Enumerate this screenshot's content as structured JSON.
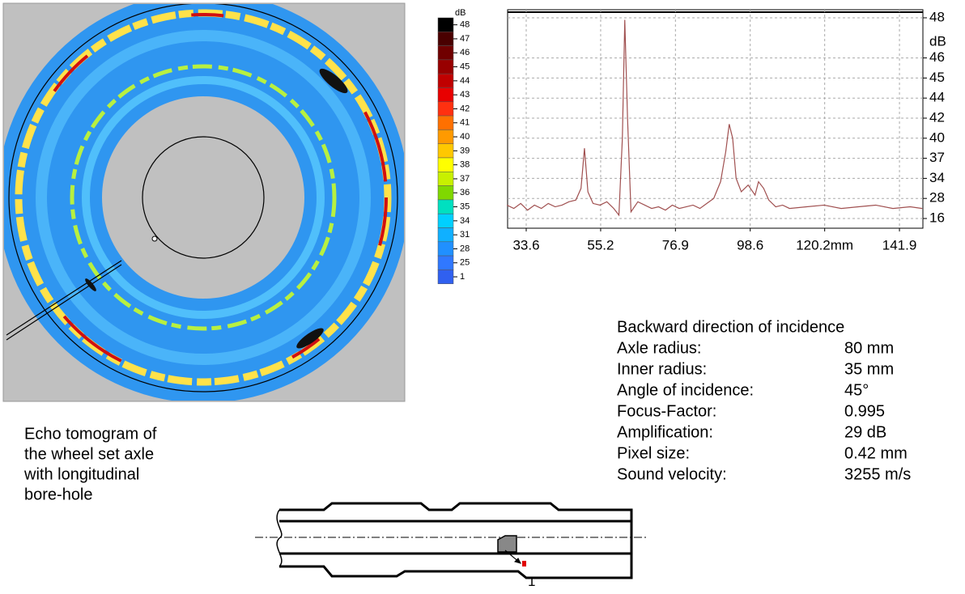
{
  "chart_data": {
    "type": "line",
    "x": [
      28,
      30,
      32,
      34,
      36,
      38,
      40,
      42,
      44,
      46,
      48,
      49.5,
      50.5,
      51.5,
      53,
      55,
      57,
      59,
      60.5,
      61.5,
      62.2,
      63,
      64,
      66,
      68,
      70,
      72,
      74,
      76,
      78,
      80,
      82,
      84,
      86,
      88,
      90,
      91.5,
      92.5,
      93.5,
      94.5,
      96,
      98,
      100,
      101,
      102.5,
      104,
      106,
      108,
      110,
      115,
      120,
      125,
      130,
      135,
      140,
      145,
      148.5
    ],
    "values": [
      24,
      22,
      25,
      21,
      24,
      22,
      25,
      23,
      24,
      26,
      27,
      31,
      38.5,
      30,
      25,
      24,
      26,
      22,
      18,
      40,
      47.9,
      42,
      20,
      26,
      24,
      22,
      23,
      21,
      24,
      22,
      23,
      24,
      22,
      25,
      28,
      33,
      38,
      41.4,
      40,
      34,
      30,
      32,
      29,
      33,
      31,
      27,
      23,
      24,
      22,
      23,
      24,
      22,
      23,
      24,
      22,
      23,
      22
    ],
    "color": "#a05050",
    "xlim": [
      28.2,
      148.7
    ],
    "xticks": [
      33.6,
      55.2,
      76.9,
      98.6,
      {
        "value": 120.2,
        "label": "120.2mm"
      },
      141.9
    ],
    "ylim": [
      14,
      49
    ],
    "yticks": [
      16,
      28,
      34,
      37,
      40,
      42,
      44,
      45,
      46,
      48
    ],
    "y_unit": "dB",
    "grid": true
  },
  "colorbar": {
    "unit": "dB",
    "levels": [
      {
        "value": 48,
        "color": "#000000"
      },
      {
        "value": 47,
        "color": "#4a0000"
      },
      {
        "value": 46,
        "color": "#700000"
      },
      {
        "value": 45,
        "color": "#980000"
      },
      {
        "value": 44,
        "color": "#c00000"
      },
      {
        "value": 43,
        "color": "#e80000"
      },
      {
        "value": 42,
        "color": "#ff3010"
      },
      {
        "value": 41,
        "color": "#ff7000"
      },
      {
        "value": 40,
        "color": "#ff9a00"
      },
      {
        "value": 39,
        "color": "#ffc800"
      },
      {
        "value": 38,
        "color": "#ffff00"
      },
      {
        "value": 37,
        "color": "#c8f000"
      },
      {
        "value": 36,
        "color": "#80d800"
      },
      {
        "value": 35,
        "color": "#00e0c0"
      },
      {
        "value": 34,
        "color": "#00d0ff"
      },
      {
        "value": 31,
        "color": "#10b0ff"
      },
      {
        "value": 28,
        "color": "#2090ff"
      },
      {
        "value": 25,
        "color": "#3078ff"
      },
      {
        "value": 1,
        "color": "#3060f0"
      }
    ]
  },
  "parameters": {
    "heading": "Backward direction of incidence",
    "rows": [
      [
        "Axle radius:",
        "80 mm"
      ],
      [
        "Inner radius:",
        "35 mm"
      ],
      [
        "Angle of incidence:",
        "45°"
      ],
      [
        "Focus-Factor:",
        "0.995"
      ],
      [
        "Amplification:",
        "29 dB"
      ],
      [
        "Pixel size:",
        "0.42 mm"
      ],
      [
        "Sound velocity:",
        "3255 m/s"
      ]
    ]
  },
  "caption": {
    "lines": [
      "Echo tomogram of",
      "the wheel set axle",
      "with longitudinal",
      "bore-hole"
    ]
  },
  "diagram": {
    "marker": "1"
  }
}
